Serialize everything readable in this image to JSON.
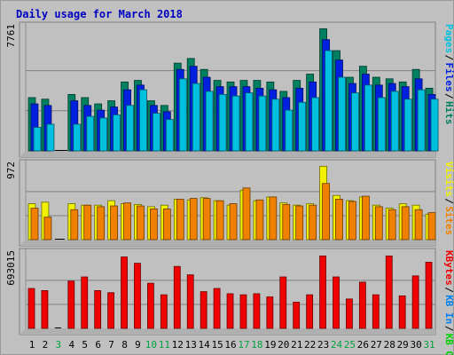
{
  "chart_data": {
    "type": "bar",
    "title": "Daily usage for March 2018",
    "days": [
      "1",
      "2",
      "3",
      "4",
      "5",
      "6",
      "7",
      "8",
      "9",
      "10",
      "11",
      "12",
      "13",
      "14",
      "15",
      "16",
      "17",
      "18",
      "19",
      "20",
      "21",
      "22",
      "23",
      "24",
      "25",
      "26",
      "27",
      "28",
      "29",
      "30",
      "31"
    ],
    "weekend_days": [
      "3",
      "10",
      "11",
      "17",
      "18",
      "24",
      "25",
      "31"
    ],
    "panels": [
      {
        "id": "traffic",
        "max_label": "7761",
        "max_value": 7761,
        "series_labels": [
          "Pages",
          "Files",
          "Hits"
        ],
        "series_colors": [
          "#00c0e0",
          "#0020e0",
          "#008060"
        ],
        "series": [
          {
            "name": "Hits",
            "color": "#008060",
            "values": [
              3400,
              3300,
              0,
              3600,
              3400,
              3000,
              3200,
              4400,
              4500,
              3200,
              2900,
              5600,
              5900,
              5200,
              4500,
              4400,
              4500,
              4500,
              4400,
              3800,
              4500,
              4900,
              7800,
              6400,
              4700,
              5400,
              4700,
              4600,
              4400,
              5200,
              4000
            ]
          },
          {
            "name": "Files",
            "color": "#0020e0",
            "values": [
              3000,
              2900,
              0,
              3200,
              2900,
              2600,
              2800,
              3900,
              4200,
              2900,
              2500,
              5200,
              5400,
              4700,
              4100,
              4100,
              4100,
              4000,
              3900,
              3400,
              4000,
              4400,
              7100,
              5800,
              4300,
              4900,
              4200,
              4300,
              4100,
              4600,
              3600
            ]
          },
          {
            "name": "Pages",
            "color": "#00c0e0",
            "values": [
              1500,
              1700,
              0,
              1700,
              2200,
              2100,
              2300,
              2900,
              3900,
              2400,
              2000,
              4600,
              4300,
              3800,
              3600,
              3500,
              3700,
              3500,
              3300,
              2600,
              3100,
              3400,
              6400,
              4700,
              3700,
              4200,
              3400,
              3800,
              3300,
              3900,
              3300
            ]
          }
        ]
      },
      {
        "id": "visits",
        "max_label": "972",
        "max_value": 972,
        "series_labels": [
          "Visits",
          "Sites"
        ],
        "series_colors": [
          "#f0f000",
          "#f08000"
        ],
        "series": [
          {
            "name": "Visits",
            "color": "#f0f000",
            "values": [
              480,
              500,
              0,
              480,
              460,
              460,
              520,
              480,
              470,
              440,
              460,
              540,
              530,
              560,
              520,
              460,
              660,
              520,
              570,
              490,
              460,
              480,
              980,
              590,
              520,
              570,
              460,
              420,
              480,
              460,
              340
            ]
          },
          {
            "name": "Sites",
            "color": "#f08000",
            "values": [
              420,
              300,
              0,
              400,
              460,
              440,
              450,
              490,
              450,
              410,
              410,
              540,
              550,
              550,
              520,
              480,
              690,
              530,
              570,
              470,
              450,
              460,
              750,
              540,
              510,
              580,
              440,
              400,
              440,
              400,
              360
            ]
          }
        ]
      },
      {
        "id": "kbytes",
        "max_label": "693015",
        "max_value": 693015,
        "series_labels": [
          "KBytes",
          "KB In",
          "KB Out"
        ],
        "series_colors": [
          "#f00000",
          "#0080f0",
          "#00d000"
        ],
        "series": [
          {
            "name": "KBytes",
            "color": "#f00000",
            "values": [
              380000,
              360000,
              0,
              450000,
              490000,
              360000,
              340000,
              680000,
              620000,
              430000,
              320000,
              590000,
              510000,
              350000,
              380000,
              330000,
              320000,
              330000,
              300000,
              490000,
              250000,
              320000,
              690000,
              490000,
              280000,
              440000,
              320000,
              690000,
              310000,
              500000,
              630000
            ]
          }
        ]
      }
    ]
  }
}
